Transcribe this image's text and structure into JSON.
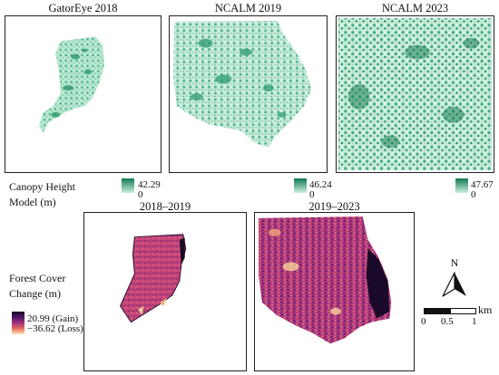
{
  "panels_top": [
    {
      "title": "GatorEye 2018"
    },
    {
      "title": "NCALM 2019"
    },
    {
      "title": "NCALM 2023"
    }
  ],
  "panels_bottom": [
    {
      "title": "2018–2019"
    },
    {
      "title": "2019–2023"
    }
  ],
  "chm_legend": {
    "title_line1": "Canopy Height",
    "title_line2": "Model (m)",
    "ramps": [
      {
        "max": "42.29",
        "min": "0"
      },
      {
        "max": "46.24",
        "min": "0"
      },
      {
        "max": "47.67",
        "min": "0"
      }
    ]
  },
  "change_legend": {
    "title_line1": "Forest Cover",
    "title_line2": "Change (m)",
    "max": "20.99 (Gain)",
    "min": "−36.62 (Loss)"
  },
  "north_arrow": {
    "label": "N"
  },
  "scale_bar": {
    "unit": "km",
    "ticks": [
      "0",
      "0.5",
      "1"
    ]
  },
  "colors": {
    "chm_high": "#0f7a52",
    "chm_low": "#cdeee0",
    "change_gain": "#14091f",
    "change_mid": "#a3307f",
    "change_loss": "#fde6b2"
  }
}
